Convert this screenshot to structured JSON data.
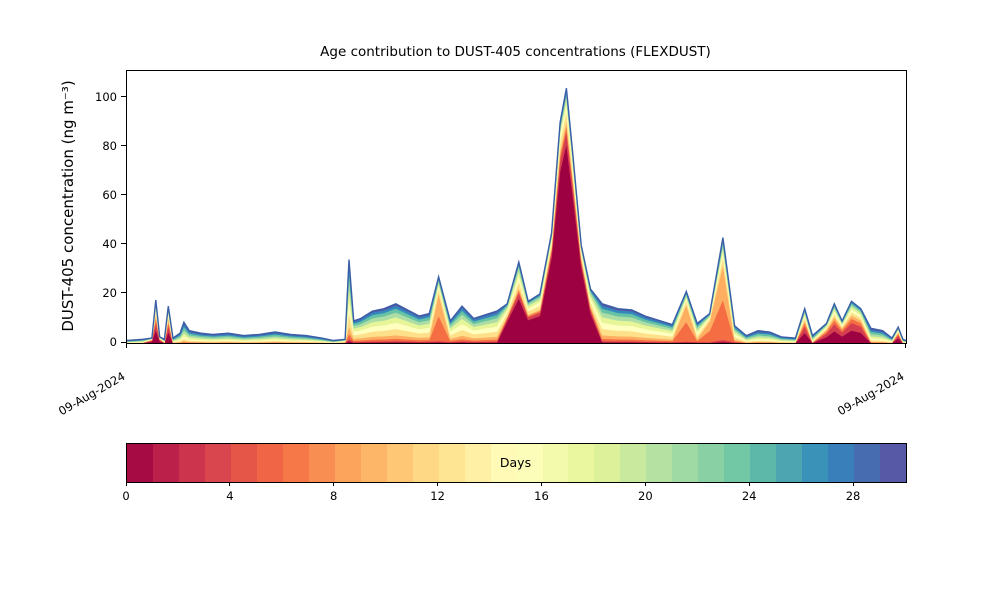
{
  "chart_data": {
    "type": "area",
    "stacked": true,
    "title": "Age contribution to DUST-405 concentrations (FLEXDUST)",
    "ylabel": "DUST-405 concentration (ng m⁻³)",
    "xlabel": "",
    "ylim": [
      0,
      111
    ],
    "y_ticks": [
      0,
      20,
      40,
      60,
      80,
      100
    ],
    "x_tick_labels": [
      "09-Aug-2024",
      "09-Aug-2024"
    ],
    "grid": false,
    "legend": "colorbar",
    "colormap_name": "Spectral",
    "colormap_colors": [
      "#9e0142",
      "#d53e4f",
      "#f46d43",
      "#fdae61",
      "#fee08b",
      "#ffffbf",
      "#e6f598",
      "#abdda4",
      "#66c2a5",
      "#3288bd",
      "#5e4fa2"
    ],
    "total_line_color": "#3a5fa8",
    "colorbar": {
      "label": "Days",
      "ticks": [
        0,
        4,
        8,
        12,
        16,
        20,
        24,
        28
      ],
      "vmin": 0,
      "vmax": 30,
      "n_segments": 30
    },
    "n_age_bins": 11,
    "age_range_days": [
      0,
      30
    ],
    "series_encoding": "value of age-bin k at point j = total[j] * profiles[profile_at[j]][k]; bins ordered youngest (0 days, dark red) to oldest (30 days, blue-purple)",
    "x_percent": [
      0,
      2,
      3.2,
      3.7,
      4.2,
      4.8,
      5.3,
      5.9,
      6.8,
      7.3,
      8.0,
      9.5,
      11,
      13,
      15,
      17,
      19,
      21,
      23,
      25,
      26.5,
      28.0,
      28.5,
      29.1,
      30,
      31.5,
      33,
      34.5,
      36,
      37.5,
      38.8,
      40.0,
      41.5,
      43.0,
      44.5,
      46,
      47.5,
      48.8,
      50.3,
      51.5,
      53,
      54.5,
      55.6,
      56.4,
      57.2,
      58.3,
      59.5,
      61,
      63,
      64.8,
      66.5,
      68.5,
      70,
      71.8,
      73.2,
      74.8,
      76.5,
      78,
      79.5,
      81,
      82.5,
      84,
      85.8,
      87.0,
      88,
      89.8,
      90.8,
      91.8,
      93,
      94.2,
      95.5,
      97,
      98.2,
      99.0,
      99.6,
      100
    ],
    "total": [
      1,
      1.5,
      2,
      17.5,
      2.5,
      1.5,
      15,
      2,
      4,
      8.5,
      5,
      4,
      3.5,
      4,
      3,
      3.5,
      4.5,
      3.5,
      3,
      2,
      1,
      1.5,
      34,
      9,
      10,
      13,
      14,
      16,
      13.5,
      11,
      12,
      27,
      9,
      15,
      10,
      11.5,
      13,
      16,
      33,
      17,
      20,
      45,
      90,
      104,
      78,
      40,
      22,
      16,
      14,
      13.5,
      11,
      9,
      7.5,
      21,
      8,
      12,
      43,
      7,
      3,
      5,
      4.5,
      2.5,
      2,
      14,
      3,
      8,
      16,
      9,
      17,
      14,
      6,
      5,
      2,
      6.5,
      1.5,
      1
    ],
    "profile_at": [
      "a",
      "a",
      "s",
      "s",
      "s",
      "a",
      "s",
      "a",
      "a",
      "a",
      "a",
      "a",
      "a",
      "a",
      "a",
      "a",
      "a",
      "a",
      "a",
      "a",
      "a",
      "m",
      "m",
      "m",
      "m",
      "m",
      "m",
      "m",
      "m",
      "m",
      "m",
      "o",
      "m",
      "m",
      "m",
      "m",
      "m",
      "g",
      "g",
      "g",
      "g",
      "f",
      "f",
      "f",
      "f",
      "f",
      "g",
      "m",
      "m",
      "m",
      "m",
      "m",
      "m",
      "o",
      "m",
      "o",
      "o",
      "m",
      "a",
      "a",
      "a",
      "a",
      "a",
      "s",
      "a",
      "s",
      "s",
      "s",
      "s",
      "s",
      "a",
      "a",
      "a",
      "s",
      "a",
      "a"
    ],
    "profiles": {
      "f": [
        0.78,
        0.05,
        0.02,
        0.02,
        0.04,
        0.03,
        0.02,
        0.015,
        0.01,
        0.01,
        0.005
      ],
      "g": [
        0.55,
        0.07,
        0.03,
        0.03,
        0.08,
        0.07,
        0.06,
        0.05,
        0.03,
        0.02,
        0.01
      ],
      "o": [
        0.01,
        0.02,
        0.38,
        0.33,
        0.08,
        0.05,
        0.04,
        0.03,
        0.03,
        0.02,
        0.01
      ],
      "m": [
        0.02,
        0.03,
        0.06,
        0.09,
        0.16,
        0.16,
        0.14,
        0.12,
        0.1,
        0.08,
        0.04
      ],
      "a": [
        0.01,
        0.01,
        0.03,
        0.05,
        0.1,
        0.12,
        0.15,
        0.16,
        0.15,
        0.13,
        0.09
      ],
      "s": [
        0.3,
        0.18,
        0.1,
        0.08,
        0.08,
        0.07,
        0.06,
        0.05,
        0.04,
        0.03,
        0.01
      ]
    }
  }
}
